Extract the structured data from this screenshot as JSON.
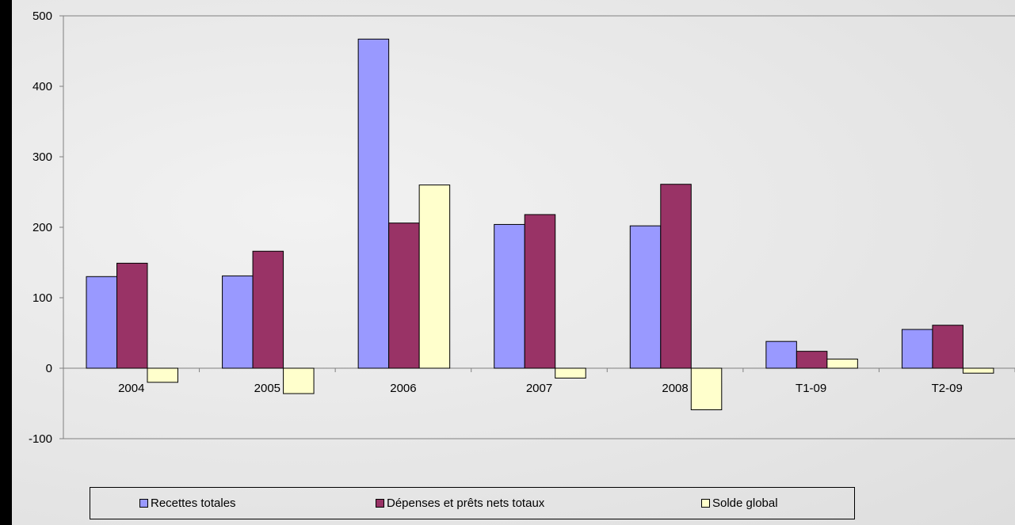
{
  "chart_data": {
    "type": "bar",
    "categories": [
      "2004",
      "2005",
      "2006",
      "2007",
      "2008",
      "T1-09",
      "T2-09"
    ],
    "series": [
      {
        "name": "Recettes totales",
        "values": [
          130,
          131,
          467,
          204,
          202,
          38,
          55
        ],
        "color": "#9999ff"
      },
      {
        "name": "Dépenses et prêts nets totaux",
        "values": [
          149,
          166,
          206,
          218,
          261,
          24,
          61
        ],
        "color": "#993366"
      },
      {
        "name": "Solde global",
        "values": [
          -20,
          -36,
          260,
          -14,
          -59,
          13,
          -7
        ],
        "color": "#ffffcc"
      }
    ],
    "ylim": [
      -100,
      500
    ],
    "yticks": [
      "-100",
      "0",
      "100",
      "200",
      "300",
      "400",
      "500"
    ],
    "legend_position": "bottom",
    "grid": false
  }
}
